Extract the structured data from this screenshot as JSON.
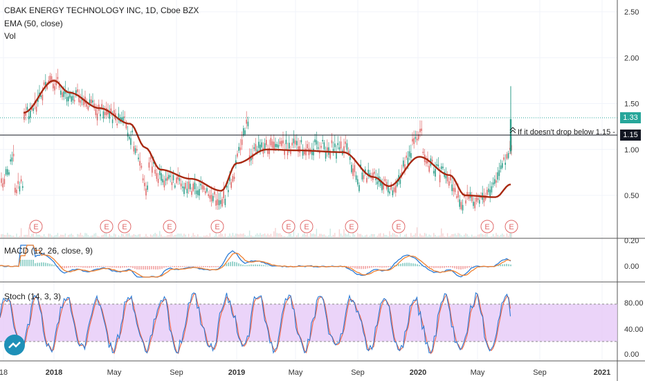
{
  "header": {
    "title": "CBAK ENERGY TECHNOLOGY INC, 1D, Cboe BZX",
    "ema_label": "EMA (50, close)",
    "vol_label": "Vol"
  },
  "macd_label": "MACD (12, 26, close, 9)",
  "stoch_label": "Stoch (14, 3, 3)",
  "annotation": "If it doesn't drop below 1.15 - 1",
  "price_tags": {
    "last": "1.33",
    "line": "1.15"
  },
  "colors": {
    "up": "#2e9e8a",
    "down": "#e06a6a",
    "ema": "#a82810",
    "macd": "#2a7bd6",
    "signal": "#f08030",
    "stoch_k": "#2a7bd6",
    "stoch_d": "#f06040",
    "stoch_band": "#e6c9f7",
    "last_tag": "#26a69a",
    "line_tag": "#131722"
  },
  "chart_data": [
    {
      "type": "candlestick",
      "title": "CBAK ENERGY TECHNOLOGY INC, 1D, Cboe BZX",
      "yaxis_ticks": [
        "2.50",
        "2.00",
        "1.50",
        "1.00",
        "0.50"
      ],
      "ylim": [
        0.2,
        2.6
      ],
      "x_ticks": [
        "18",
        "2018",
        "May",
        "Sep",
        "2019",
        "May",
        "Sep",
        "2020",
        "May",
        "Sep",
        "2021"
      ],
      "horizontal_lines": [
        1.33,
        1.15
      ],
      "earnings_markers": [
        "E",
        "E",
        "E",
        "E",
        "E",
        "E",
        "E",
        "E",
        "E",
        "E",
        "E"
      ],
      "ema_series": [
        {
          "date": "2017-11",
          "value": 1.4
        },
        {
          "date": "2018-01",
          "value": 1.75
        },
        {
          "date": "2018-02",
          "value": 1.62
        },
        {
          "date": "2018-04",
          "value": 1.45
        },
        {
          "date": "2018-06",
          "value": 1.28
        },
        {
          "date": "2018-07",
          "value": 1.02
        },
        {
          "date": "2018-08",
          "value": 0.78
        },
        {
          "date": "2018-10",
          "value": 0.68
        },
        {
          "date": "2018-12",
          "value": 0.55
        },
        {
          "date": "2019-01",
          "value": 0.85
        },
        {
          "date": "2019-03",
          "value": 1.0
        },
        {
          "date": "2019-05",
          "value": 0.99
        },
        {
          "date": "2019-08",
          "value": 0.97
        },
        {
          "date": "2019-10",
          "value": 0.7
        },
        {
          "date": "2019-11",
          "value": 0.6
        },
        {
          "date": "2020-01",
          "value": 0.92
        },
        {
          "date": "2020-03",
          "value": 0.72
        },
        {
          "date": "2020-04",
          "value": 0.5
        },
        {
          "date": "2020-06",
          "value": 0.48
        },
        {
          "date": "2020-07",
          "value": 0.62
        }
      ]
    },
    {
      "type": "line",
      "title": "MACD (12, 26, close, 9)",
      "yaxis_ticks": [
        "0.20",
        "0.00"
      ]
    },
    {
      "type": "line",
      "title": "Stoch (14, 3, 3)",
      "yaxis_ticks": [
        "80.00",
        "40.00",
        "0.00"
      ],
      "bands": [
        20,
        80
      ]
    }
  ]
}
